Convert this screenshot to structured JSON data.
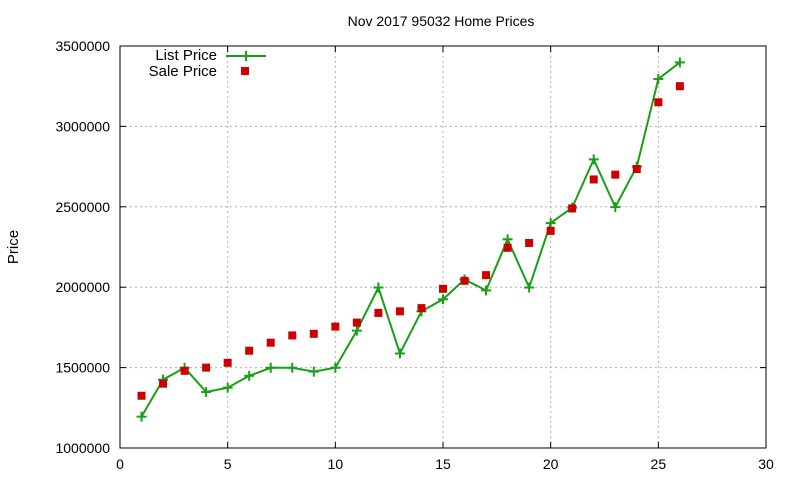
{
  "chart_data": {
    "type": "line",
    "title": "Nov 2017 95032 Home Prices",
    "xlabel": "",
    "ylabel": "Price",
    "xlim": [
      0,
      30
    ],
    "ylim": [
      1000000,
      3500000
    ],
    "x_ticks": [
      0,
      5,
      10,
      15,
      20,
      25,
      30
    ],
    "y_ticks": [
      1000000,
      1500000,
      2000000,
      2500000,
      3000000,
      3500000
    ],
    "grid": true,
    "legend_position": "top-left",
    "series": [
      {
        "name": "List Price",
        "style": "line-with-plus-markers",
        "color": "#1a9e1a",
        "x": [
          1,
          2,
          3,
          4,
          5,
          6,
          7,
          8,
          9,
          10,
          11,
          12,
          13,
          14,
          15,
          16,
          17,
          18,
          19,
          20,
          21,
          22,
          23,
          24,
          25,
          26
        ],
        "values": [
          1195000,
          1425000,
          1499000,
          1348000,
          1375000,
          1449000,
          1499000,
          1499000,
          1475000,
          1499000,
          1730000,
          1998000,
          1588000,
          1850000,
          1925000,
          2048000,
          1980000,
          2298000,
          1998000,
          2399000,
          2495000,
          2795000,
          2498000,
          2750000,
          3295000,
          3398000
        ]
      },
      {
        "name": "Sale Price",
        "style": "square-markers",
        "color": "#cc0000",
        "x": [
          1,
          2,
          3,
          4,
          5,
          6,
          7,
          8,
          9,
          10,
          11,
          12,
          13,
          14,
          15,
          16,
          17,
          18,
          19,
          20,
          21,
          22,
          23,
          24,
          25,
          26
        ],
        "values": [
          1325000,
          1400000,
          1480000,
          1500000,
          1530000,
          1605000,
          1655000,
          1700000,
          1710000,
          1755000,
          1780000,
          1840000,
          1850000,
          1870000,
          1990000,
          2040000,
          2075000,
          2245000,
          2275000,
          2350000,
          2490000,
          2670000,
          2700000,
          2735000,
          3150000,
          3250000
        ]
      }
    ]
  }
}
